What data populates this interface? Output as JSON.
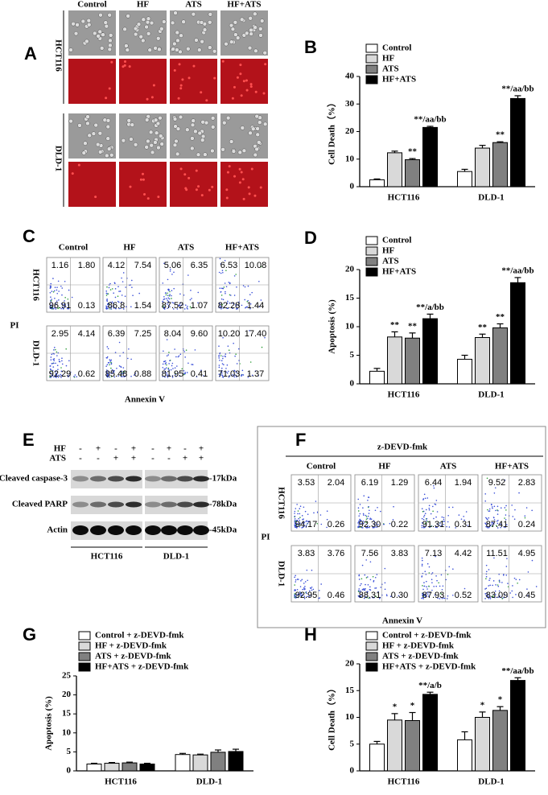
{
  "panels": {
    "A": {
      "label": "A",
      "columns": [
        "Control",
        "HF",
        "ATS",
        "HF+ATS"
      ],
      "rows": [
        "HCT116",
        "DLD-1"
      ]
    },
    "C": {
      "label": "C",
      "columns": [
        "Control",
        "HF",
        "ATS",
        "HF+ATS"
      ],
      "rows": [
        "HCT116",
        "DLD-1"
      ],
      "y_axis": "PI",
      "x_axis": "Annexin V",
      "quadrants": [
        [
          [
            "1.16",
            "1.80",
            "96.91",
            "0.13"
          ],
          [
            "4.12",
            "7.54",
            "86.8",
            "1.54"
          ],
          [
            "5.06",
            "6.35",
            "87.52",
            "1.07"
          ],
          [
            "6.53",
            "10.08",
            "82.28",
            "1.44"
          ]
        ],
        [
          [
            "2.95",
            "4.14",
            "92.29",
            "0.62"
          ],
          [
            "6.39",
            "7.25",
            "85.48",
            "0.88"
          ],
          [
            "8.04",
            "9.60",
            "81.95",
            "0.41"
          ],
          [
            "10.20",
            "17.40",
            "71.03",
            "1.37"
          ]
        ]
      ]
    },
    "E": {
      "label": "E",
      "treatments": [
        {
          "name": "HF",
          "signs": [
            "-",
            "+",
            "-",
            "+",
            "-",
            "+",
            "-",
            "+"
          ]
        },
        {
          "name": "ATS",
          "signs": [
            "-",
            "-",
            "+",
            "+",
            "-",
            "-",
            "+",
            "+"
          ]
        }
      ],
      "bands": [
        {
          "name": "Cleaved caspase-3",
          "size": "-17kDa"
        },
        {
          "name": "Cleaved PARP",
          "size": "-78kDa"
        },
        {
          "name": "Actin",
          "size": "-45kDa"
        }
      ],
      "groups": [
        "HCT116",
        "DLD-1"
      ]
    },
    "F": {
      "label": "F",
      "title": "z-DEVD-fmk",
      "columns": [
        "Control",
        "HF",
        "ATS",
        "HF+ATS"
      ],
      "rows": [
        "HCT116",
        "DLD-1"
      ],
      "y_axis": "PI",
      "x_axis": "Annexin V",
      "quadrants": [
        [
          [
            "3.53",
            "2.04",
            "94.17",
            "0.26"
          ],
          [
            "6.19",
            "1.29",
            "92.30",
            "0.22"
          ],
          [
            "6.44",
            "1.94",
            "91.31",
            "0.31"
          ],
          [
            "9.52",
            "2.83",
            "87.41",
            "0.24"
          ]
        ],
        [
          [
            "3.83",
            "3.76",
            "92.95",
            "0.46"
          ],
          [
            "7.56",
            "3.83",
            "88.31",
            "0.30"
          ],
          [
            "7.13",
            "4.42",
            "87.93",
            "0.52"
          ],
          [
            "11.51",
            "4.95",
            "83.09",
            "0.45"
          ]
        ]
      ]
    }
  },
  "chart_data": [
    {
      "type": "bar",
      "label": "B",
      "ylabel": "Cell Death（%）",
      "categories": [
        "HCT116",
        "DLD-1"
      ],
      "ylim": [
        0,
        40
      ],
      "yticks": [
        0,
        10,
        20,
        30,
        40
      ],
      "legend": "upper left",
      "series": [
        {
          "name": "Control",
          "color": "#ffffff",
          "values": [
            2.5,
            5.5
          ],
          "errors": [
            0.3,
            0.8
          ]
        },
        {
          "name": "HF",
          "color": "#d9d9d9",
          "values": [
            12.3,
            14
          ],
          "errors": [
            0.6,
            1
          ]
        },
        {
          "name": "ATS",
          "color": "#808080",
          "values": [
            9.8,
            16
          ],
          "errors": [
            0.4,
            0.3
          ],
          "annotations": [
            "**",
            "**"
          ]
        },
        {
          "name": "HF+ATS",
          "color": "#000000",
          "values": [
            21.5,
            32
          ],
          "errors": [
            0.4,
            1
          ],
          "annotations": [
            "**/aa/bb",
            "**/aa/bb"
          ]
        }
      ]
    },
    {
      "type": "bar",
      "label": "D",
      "ylabel": "Apoptosis (%)",
      "categories": [
        "HCT116",
        "DLD-1"
      ],
      "ylim": [
        0,
        20
      ],
      "yticks": [
        0,
        5,
        10,
        15,
        20
      ],
      "legend": "upper left",
      "series": [
        {
          "name": "Control",
          "color": "#ffffff",
          "values": [
            2.2,
            4.3
          ],
          "errors": [
            0.5,
            0.7
          ]
        },
        {
          "name": "HF",
          "color": "#d9d9d9",
          "values": [
            8.2,
            8.1
          ],
          "errors": [
            0.9,
            0.6
          ],
          "annotations": [
            "**",
            "**"
          ]
        },
        {
          "name": "ATS",
          "color": "#808080",
          "values": [
            8.0,
            9.8
          ],
          "errors": [
            0.9,
            0.7
          ],
          "annotations": [
            "**",
            "**"
          ]
        },
        {
          "name": "HF+ATS",
          "color": "#000000",
          "values": [
            11.4,
            17.7
          ],
          "errors": [
            0.8,
            0.9
          ],
          "annotations": [
            "**/a/bb",
            "**/aa/bb"
          ]
        }
      ]
    },
    {
      "type": "bar",
      "label": "G",
      "ylabel": "Apoptosis (%)",
      "categories": [
        "HCT116",
        "DLD-1"
      ],
      "ylim": [
        0,
        25
      ],
      "yticks": [
        0,
        5,
        10,
        15,
        20,
        25
      ],
      "legend": "upper left",
      "series": [
        {
          "name": "Control + z-DEVD-fmk",
          "color": "#ffffff",
          "values": [
            1.8,
            4.3
          ],
          "errors": [
            0.2,
            0.3
          ]
        },
        {
          "name": "HF + z-DEVD-fmk",
          "color": "#d9d9d9",
          "values": [
            2.0,
            4.2
          ],
          "errors": [
            0.2,
            0.2
          ]
        },
        {
          "name": "ATS + z-DEVD-fmk",
          "color": "#808080",
          "values": [
            2.1,
            4.9
          ],
          "errors": [
            0.2,
            0.6
          ]
        },
        {
          "name": "HF+ATS + z-DEVD-fmk",
          "color": "#000000",
          "values": [
            1.8,
            5.1
          ],
          "errors": [
            0.2,
            0.6
          ]
        }
      ]
    },
    {
      "type": "bar",
      "label": "H",
      "ylabel": "Cell Death（%）",
      "categories": [
        "HCT116",
        "DLD-1"
      ],
      "ylim": [
        0,
        20
      ],
      "yticks": [
        0,
        5,
        10,
        15,
        20
      ],
      "legend": "upper left",
      "series": [
        {
          "name": "Control + z-DEVD-fmk",
          "color": "#ffffff",
          "values": [
            5.0,
            5.8
          ],
          "errors": [
            0.5,
            1.5
          ]
        },
        {
          "name": "HF + z-DEVD-fmk",
          "color": "#d9d9d9",
          "values": [
            9.5,
            10.0
          ],
          "errors": [
            1.2,
            1.0
          ],
          "annotations": [
            "*",
            "*"
          ]
        },
        {
          "name": "ATS + z-DEVD-fmk",
          "color": "#808080",
          "values": [
            9.4,
            11.3
          ],
          "errors": [
            1.5,
            0.7
          ],
          "annotations": [
            "*",
            "*"
          ]
        },
        {
          "name": "HF+ATS + z-DEVD-fmk",
          "color": "#000000",
          "values": [
            14.3,
            16.9
          ],
          "errors": [
            0.4,
            0.5
          ],
          "annotations": [
            "**/a/b",
            "**/aa/bb"
          ]
        }
      ]
    }
  ]
}
